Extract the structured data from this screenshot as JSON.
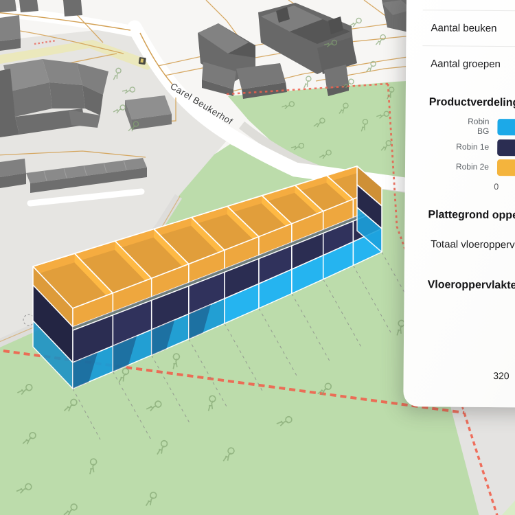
{
  "colors": {
    "blue": "#1CA9E8",
    "navy": "#2B2D52",
    "orange": "#F5AC40",
    "map_green": "#BCDCAB",
    "map_green_light": "#D8ECC6",
    "paved": "#E6E5E2",
    "base": "#F7F6F4",
    "parcel_line": "#D3A155",
    "boundary_red": "#F0604D",
    "building_gray": "#7E7E7E",
    "divider": "#E8E8E7",
    "text_dark": "#1B1B1D",
    "text_gray": "#5F6469"
  },
  "map": {
    "street": "Carel Beukerhof",
    "building": {
      "bays": 9,
      "floors": [
        "Robin BG",
        "Robin 1e",
        "Robin 2e"
      ]
    }
  },
  "panel": {
    "rows": [
      {
        "label": "Aantal beuken"
      },
      {
        "label": "Aantal groepen"
      }
    ],
    "product": {
      "title": "Productverdeling",
      "legend": [
        {
          "label": "Robin BG",
          "color": "#1CA9E8"
        },
        {
          "label": "Robin 1e",
          "color": "#2B2D52"
        },
        {
          "label": "Robin 2e",
          "color": "#F4B43D"
        }
      ],
      "tick_zero": "0"
    },
    "plattegrond_title": "Plattegrond oppervlakte",
    "totaal_label": "Totaal vloeroppervlakte",
    "vloer_title": "Vloeroppervlakte",
    "bottom_value": "320"
  }
}
